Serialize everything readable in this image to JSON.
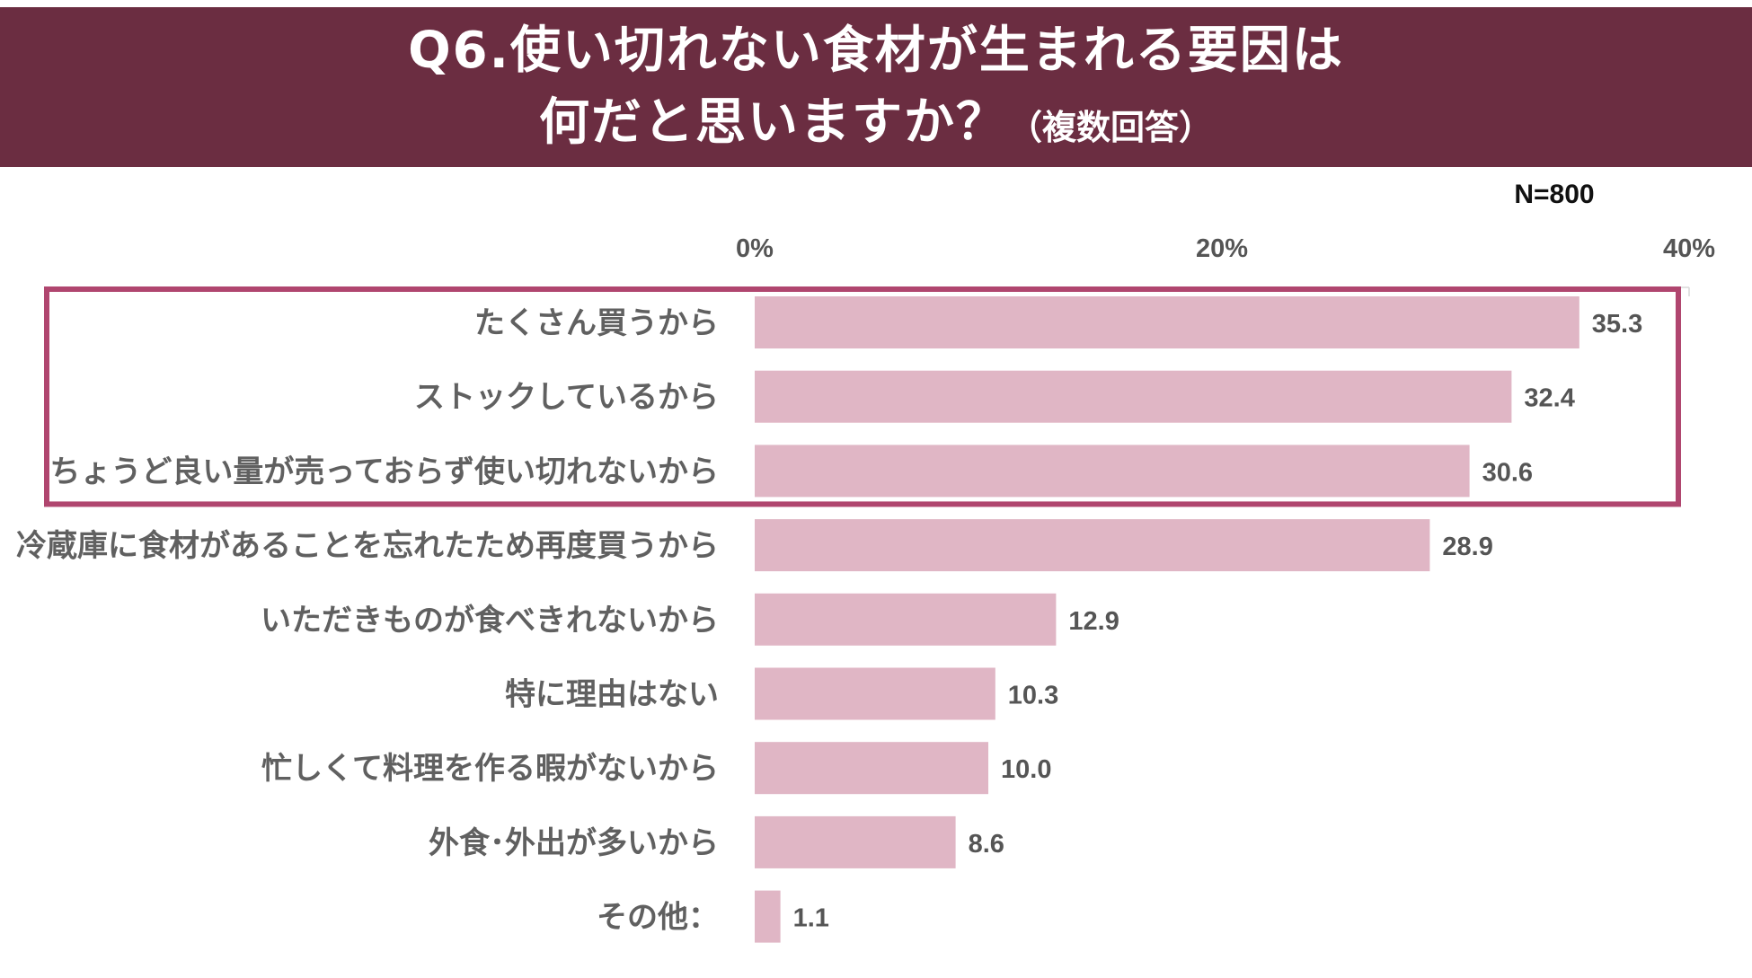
{
  "header": {
    "title_line1": "Q6.使い切れない食材が生まれる要因は",
    "title_line2": "何だと思いますか？",
    "title_sub": "（複数回答）"
  },
  "n_label": "N=800",
  "colors": {
    "header_bg": "#6b2d41",
    "bar": "#e0b6c5",
    "highlight_border": "#b0466f"
  },
  "chart_data": {
    "type": "bar",
    "orientation": "horizontal",
    "categories": [
      "たくさん買うから",
      "ストックしているから",
      "ちょうど良い量が売っておらず使い切れないから",
      "冷蔵庫に食材があることを忘れたため再度買うから",
      "いただきものが食べきれないから",
      "特に理由はない",
      "忙しくて料理を作る暇がないから",
      "外食･外出が多いから",
      "その他："
    ],
    "values": [
      35.3,
      32.4,
      30.6,
      28.9,
      12.9,
      10.3,
      10.0,
      8.6,
      1.1
    ],
    "value_labels": [
      "35.3",
      "32.4",
      "30.6",
      "28.9",
      "12.9",
      "10.3",
      "10.0",
      "8.6",
      "1.1"
    ],
    "xlim": [
      0,
      40
    ],
    "xticks": [
      "0%",
      "20%",
      "40%"
    ],
    "xtick_values": [
      0,
      20,
      40
    ],
    "highlighted_categories": [
      0,
      1,
      2
    ],
    "grid": false
  }
}
